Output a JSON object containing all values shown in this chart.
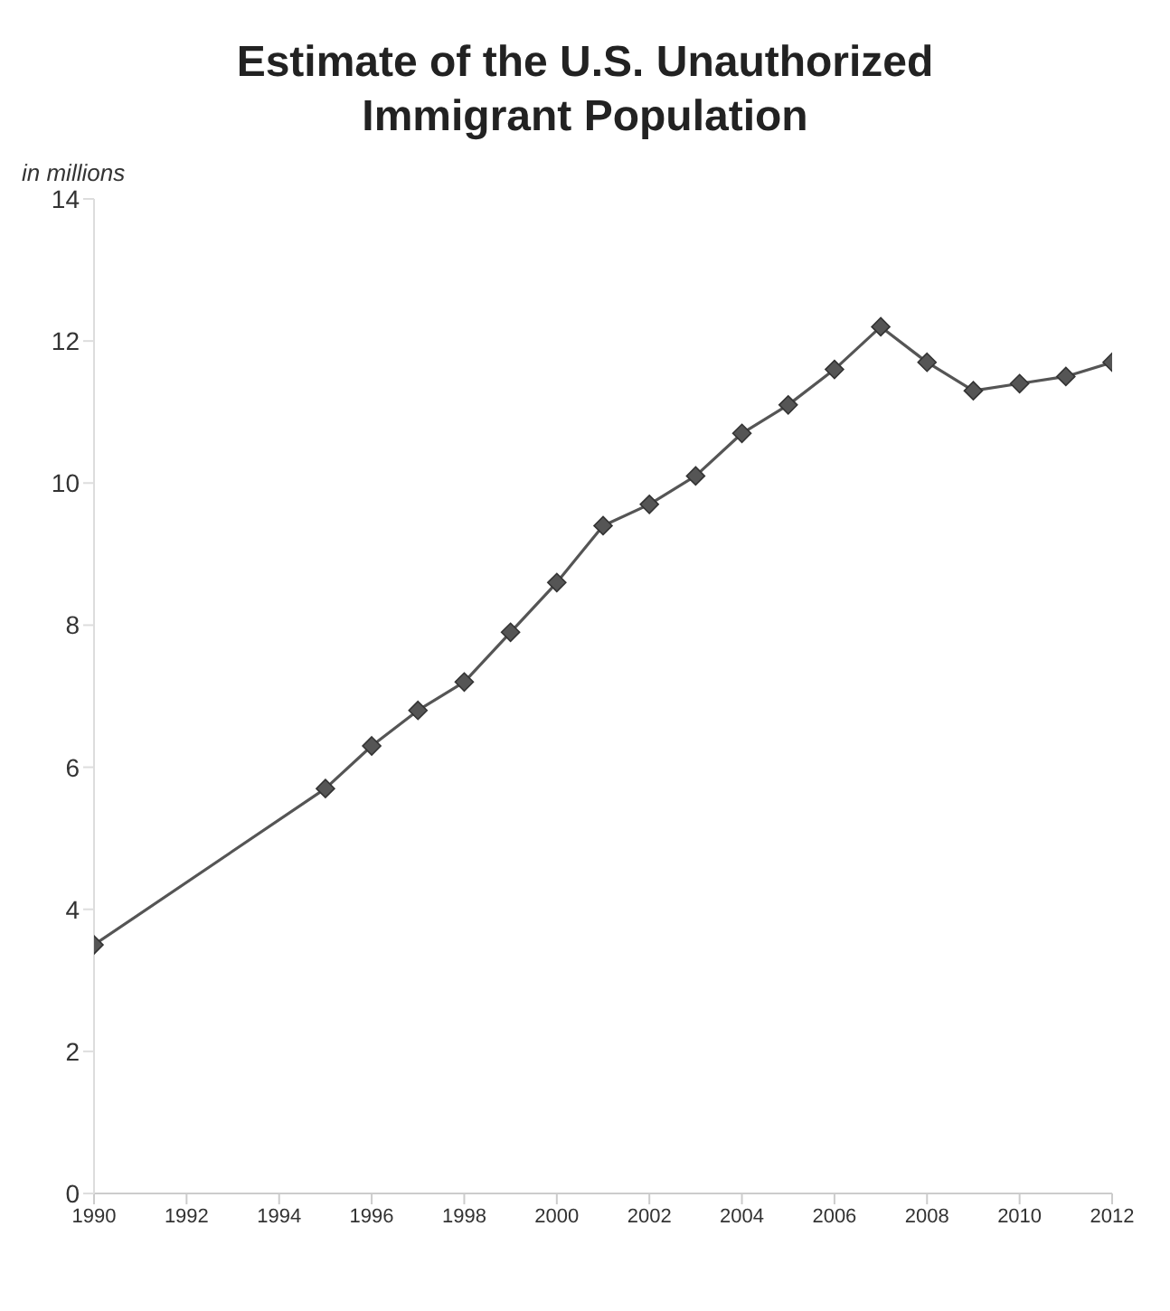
{
  "chart_data": {
    "type": "line",
    "title": "Estimate of the U.S. Unauthorized Immigrant Population",
    "ylabel": "in millions",
    "x": [
      1990,
      1995,
      1996,
      1997,
      1998,
      1999,
      2000,
      2001,
      2002,
      2003,
      2004,
      2005,
      2006,
      2007,
      2008,
      2009,
      2010,
      2011,
      2012
    ],
    "series": [
      {
        "color": "#555555",
        "values": [
          3.5,
          5.7,
          6.3,
          6.8,
          7.2,
          7.9,
          8.6,
          9.4,
          9.7,
          10.1,
          10.7,
          11.1,
          11.6,
          12.2,
          11.7,
          11.3,
          11.4,
          11.5,
          11.7
        ]
      }
    ],
    "xlim": [
      1990,
      2012
    ],
    "xticks": [
      1990,
      1992,
      1994,
      1996,
      1998,
      2000,
      2002,
      2004,
      2006,
      2008,
      2010,
      2012
    ],
    "ylim": [
      0,
      14
    ],
    "yticks": [
      0,
      2,
      4,
      6,
      8,
      10,
      12,
      14
    ],
    "marker": "diamond",
    "line_style": "solid",
    "grid": false,
    "legend": false
  }
}
